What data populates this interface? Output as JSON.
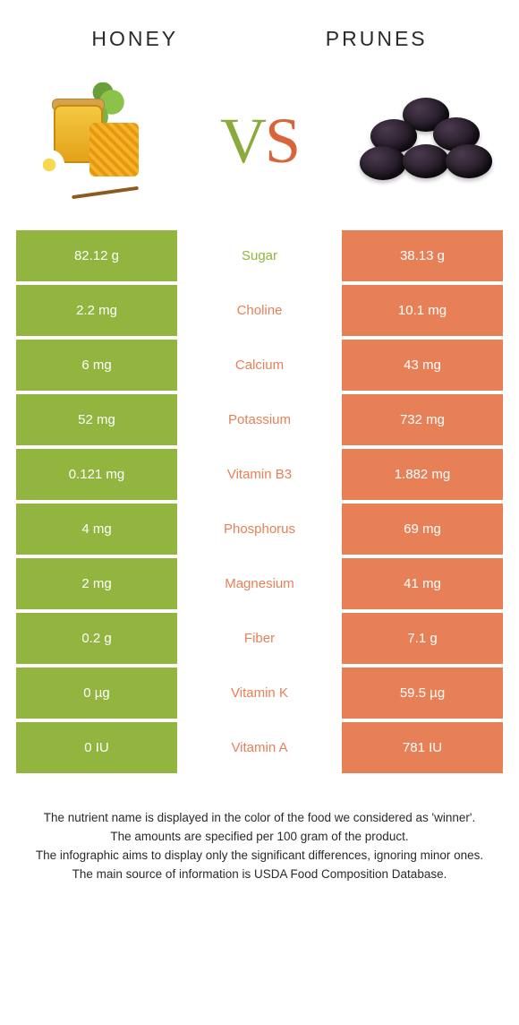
{
  "colors": {
    "green": "#91b53e",
    "orange": "#e88057",
    "text": "#2a2a2a"
  },
  "left": {
    "title": "HONEY"
  },
  "right": {
    "title": "PRUNES"
  },
  "vs": {
    "v": "V",
    "s": "S"
  },
  "rows": [
    {
      "left": "82.12 g",
      "label": "Sugar",
      "right": "38.13 g",
      "winner": "left"
    },
    {
      "left": "2.2 mg",
      "label": "Choline",
      "right": "10.1 mg",
      "winner": "right"
    },
    {
      "left": "6 mg",
      "label": "Calcium",
      "right": "43 mg",
      "winner": "right"
    },
    {
      "left": "52 mg",
      "label": "Potassium",
      "right": "732 mg",
      "winner": "right"
    },
    {
      "left": "0.121 mg",
      "label": "Vitamin B3",
      "right": "1.882 mg",
      "winner": "right"
    },
    {
      "left": "4 mg",
      "label": "Phosphorus",
      "right": "69 mg",
      "winner": "right"
    },
    {
      "left": "2 mg",
      "label": "Magnesium",
      "right": "41 mg",
      "winner": "right"
    },
    {
      "left": "0.2 g",
      "label": "Fiber",
      "right": "7.1 g",
      "winner": "right"
    },
    {
      "left": "0 µg",
      "label": "Vitamin K",
      "right": "59.5 µg",
      "winner": "right"
    },
    {
      "left": "0 IU",
      "label": "Vitamin A",
      "right": "781 IU",
      "winner": "right"
    }
  ],
  "footer": {
    "line1": "The nutrient name is displayed in the color of the food we considered as 'winner'.",
    "line2": "The amounts are specified per 100 gram of the product.",
    "line3": "The infographic aims to display only the significant differences, ignoring minor ones.",
    "line4": "The main source of information is USDA Food Composition Database."
  }
}
